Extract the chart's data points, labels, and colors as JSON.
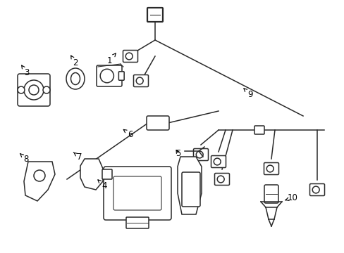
{
  "bg_color": "#ffffff",
  "line_color": "#2a2a2a",
  "figsize": [
    4.89,
    3.6
  ],
  "dpi": 100,
  "xlim": [
    0,
    489
  ],
  "ylim": [
    0,
    360
  ]
}
